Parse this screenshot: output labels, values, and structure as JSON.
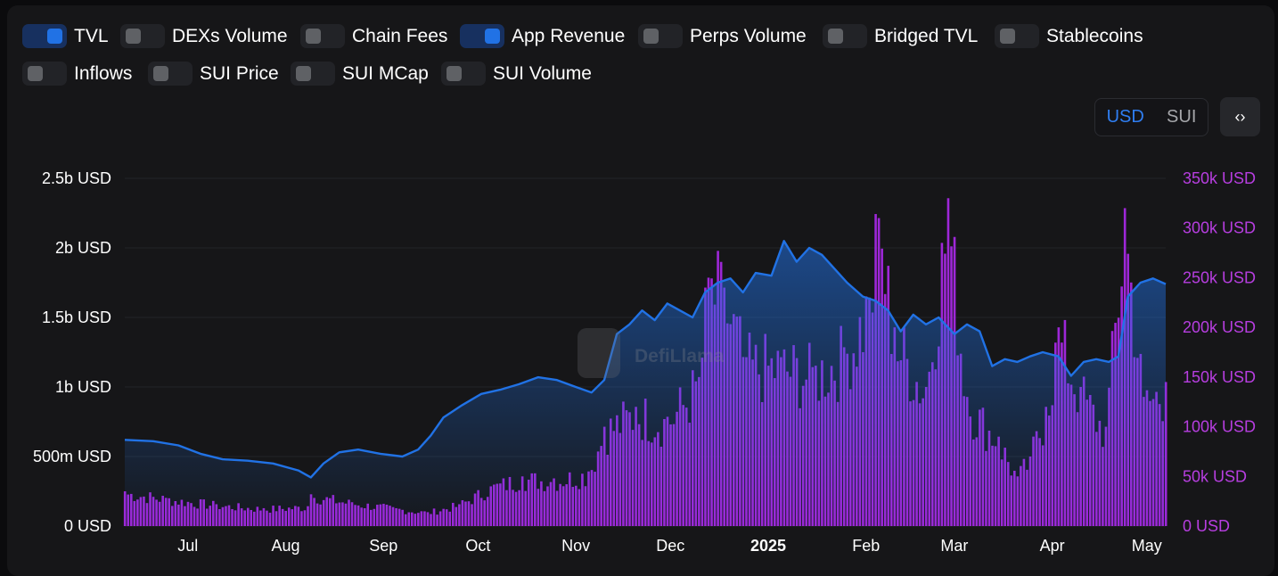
{
  "toggles": [
    {
      "label": "TVL",
      "on": true
    },
    {
      "label": "DEXs Volume",
      "on": false
    },
    {
      "label": "Chain Fees",
      "on": false
    },
    {
      "label": "App Revenue",
      "on": true
    },
    {
      "label": "Perps Volume",
      "on": false
    },
    {
      "label": "Bridged TVL",
      "on": false
    },
    {
      "label": "Stablecoins",
      "on": false
    },
    {
      "label": "Inflows",
      "on": false
    },
    {
      "label": "SUI Price",
      "on": false
    },
    {
      "label": "SUI MCap",
      "on": false
    },
    {
      "label": "SUI Volume",
      "on": false
    }
  ],
  "units": {
    "usd": "USD",
    "sui": "SUI",
    "active": "USD"
  },
  "embed_icon": "code-brackets-icon",
  "embed_glyph": "‹›",
  "watermark": "DefiLlama",
  "colors": {
    "tvl": "#2172e5",
    "revenue": "#9e27d8",
    "right_axis": "#b73ee0"
  },
  "chart_data": {
    "type": "line+bar",
    "x_ticks": [
      {
        "label": "Jul",
        "date": "2024-07-01",
        "bold": false
      },
      {
        "label": "Aug",
        "date": "2024-08-01",
        "bold": false
      },
      {
        "label": "Sep",
        "date": "2024-09-01",
        "bold": false
      },
      {
        "label": "Oct",
        "date": "2024-10-01",
        "bold": false
      },
      {
        "label": "Nov",
        "date": "2024-11-01",
        "bold": false
      },
      {
        "label": "Dec",
        "date": "2024-12-01",
        "bold": false
      },
      {
        "label": "2025",
        "date": "2025-01-01",
        "bold": true
      },
      {
        "label": "Feb",
        "date": "2025-02-01",
        "bold": false
      },
      {
        "label": "Mar",
        "date": "2025-03-01",
        "bold": false
      },
      {
        "label": "Apr",
        "date": "2025-04-01",
        "bold": false
      },
      {
        "label": "May",
        "date": "2025-05-01",
        "bold": false
      }
    ],
    "x_range": [
      "2024-06-11",
      "2025-05-07"
    ],
    "y_left": {
      "ticks": [
        "0 USD",
        "500m USD",
        "1b USD",
        "1.5b USD",
        "2b USD",
        "2.5b USD"
      ],
      "range": [
        0,
        2.5
      ],
      "unit": "b USD"
    },
    "y_right": {
      "ticks": [
        "0 USD",
        "50k USD",
        "100k USD",
        "150k USD",
        "200k USD",
        "250k USD",
        "300k USD",
        "350k USD"
      ],
      "range": [
        0,
        350
      ],
      "unit": "k USD"
    },
    "series": [
      {
        "name": "TVL",
        "type": "line",
        "axis": "left",
        "points": [
          [
            "2024-06-11",
            0.62
          ],
          [
            "2024-06-20",
            0.61
          ],
          [
            "2024-06-28",
            0.58
          ],
          [
            "2024-07-05",
            0.52
          ],
          [
            "2024-07-12",
            0.48
          ],
          [
            "2024-07-20",
            0.47
          ],
          [
            "2024-07-28",
            0.45
          ],
          [
            "2024-08-05",
            0.4
          ],
          [
            "2024-08-09",
            0.35
          ],
          [
            "2024-08-13",
            0.45
          ],
          [
            "2024-08-18",
            0.53
          ],
          [
            "2024-08-24",
            0.55
          ],
          [
            "2024-08-31",
            0.52
          ],
          [
            "2024-09-07",
            0.5
          ],
          [
            "2024-09-12",
            0.55
          ],
          [
            "2024-09-16",
            0.65
          ],
          [
            "2024-09-20",
            0.78
          ],
          [
            "2024-09-26",
            0.87
          ],
          [
            "2024-10-02",
            0.95
          ],
          [
            "2024-10-08",
            0.98
          ],
          [
            "2024-10-14",
            1.02
          ],
          [
            "2024-10-20",
            1.07
          ],
          [
            "2024-10-26",
            1.05
          ],
          [
            "2024-11-01",
            1.0
          ],
          [
            "2024-11-06",
            0.96
          ],
          [
            "2024-11-10",
            1.05
          ],
          [
            "2024-11-14",
            1.38
          ],
          [
            "2024-11-18",
            1.45
          ],
          [
            "2024-11-22",
            1.55
          ],
          [
            "2024-11-26",
            1.48
          ],
          [
            "2024-11-30",
            1.6
          ],
          [
            "2024-12-04",
            1.55
          ],
          [
            "2024-12-08",
            1.5
          ],
          [
            "2024-12-12",
            1.68
          ],
          [
            "2024-12-16",
            1.75
          ],
          [
            "2024-12-20",
            1.78
          ],
          [
            "2024-12-24",
            1.68
          ],
          [
            "2024-12-28",
            1.82
          ],
          [
            "2025-01-02",
            1.8
          ],
          [
            "2025-01-06",
            2.05
          ],
          [
            "2025-01-10",
            1.9
          ],
          [
            "2025-01-14",
            2.0
          ],
          [
            "2025-01-18",
            1.95
          ],
          [
            "2025-01-22",
            1.85
          ],
          [
            "2025-01-26",
            1.75
          ],
          [
            "2025-01-31",
            1.65
          ],
          [
            "2025-02-04",
            1.62
          ],
          [
            "2025-02-08",
            1.55
          ],
          [
            "2025-02-12",
            1.4
          ],
          [
            "2025-02-16",
            1.52
          ],
          [
            "2025-02-20",
            1.45
          ],
          [
            "2025-02-24",
            1.5
          ],
          [
            "2025-03-01",
            1.38
          ],
          [
            "2025-03-05",
            1.45
          ],
          [
            "2025-03-09",
            1.4
          ],
          [
            "2025-03-13",
            1.15
          ],
          [
            "2025-03-17",
            1.2
          ],
          [
            "2025-03-21",
            1.18
          ],
          [
            "2025-03-25",
            1.22
          ],
          [
            "2025-03-29",
            1.25
          ],
          [
            "2025-04-03",
            1.22
          ],
          [
            "2025-04-07",
            1.08
          ],
          [
            "2025-04-11",
            1.18
          ],
          [
            "2025-04-15",
            1.2
          ],
          [
            "2025-04-19",
            1.18
          ],
          [
            "2025-04-22",
            1.22
          ],
          [
            "2025-04-25",
            1.65
          ],
          [
            "2025-04-29",
            1.75
          ],
          [
            "2025-05-03",
            1.78
          ],
          [
            "2025-05-07",
            1.74
          ]
        ]
      },
      {
        "name": "App Revenue",
        "type": "bar",
        "axis": "right",
        "points": [
          [
            "2024-06-11",
            35
          ],
          [
            "2024-06-25",
            28
          ],
          [
            "2024-07-10",
            22
          ],
          [
            "2024-07-25",
            18
          ],
          [
            "2024-08-08",
            20
          ],
          [
            "2024-08-09",
            32
          ],
          [
            "2024-08-22",
            24
          ],
          [
            "2024-09-05",
            18
          ],
          [
            "2024-09-15",
            14
          ],
          [
            "2024-09-25",
            22
          ],
          [
            "2024-10-05",
            40
          ],
          [
            "2024-10-15",
            50
          ],
          [
            "2024-10-25",
            48
          ],
          [
            "2024-11-05",
            55
          ],
          [
            "2024-11-10",
            100
          ],
          [
            "2024-11-20",
            120
          ],
          [
            "2024-11-30",
            110
          ],
          [
            "2024-12-10",
            150
          ],
          [
            "2024-12-13",
            250
          ],
          [
            "2024-12-18",
            240
          ],
          [
            "2024-12-25",
            170
          ],
          [
            "2025-01-05",
            170
          ],
          [
            "2025-01-15",
            160
          ],
          [
            "2025-01-25",
            180
          ],
          [
            "2025-02-02",
            230
          ],
          [
            "2025-02-05",
            310
          ],
          [
            "2025-02-10",
            200
          ],
          [
            "2025-02-20",
            140
          ],
          [
            "2025-02-27",
            330
          ],
          [
            "2025-03-05",
            130
          ],
          [
            "2025-03-15",
            90
          ],
          [
            "2025-03-21",
            50
          ],
          [
            "2025-03-25",
            70
          ],
          [
            "2025-03-30",
            120
          ],
          [
            "2025-04-03",
            200
          ],
          [
            "2025-04-10",
            140
          ],
          [
            "2025-04-18",
            100
          ],
          [
            "2025-04-24",
            320
          ],
          [
            "2025-04-30",
            130
          ],
          [
            "2025-05-07",
            145
          ]
        ]
      }
    ]
  }
}
